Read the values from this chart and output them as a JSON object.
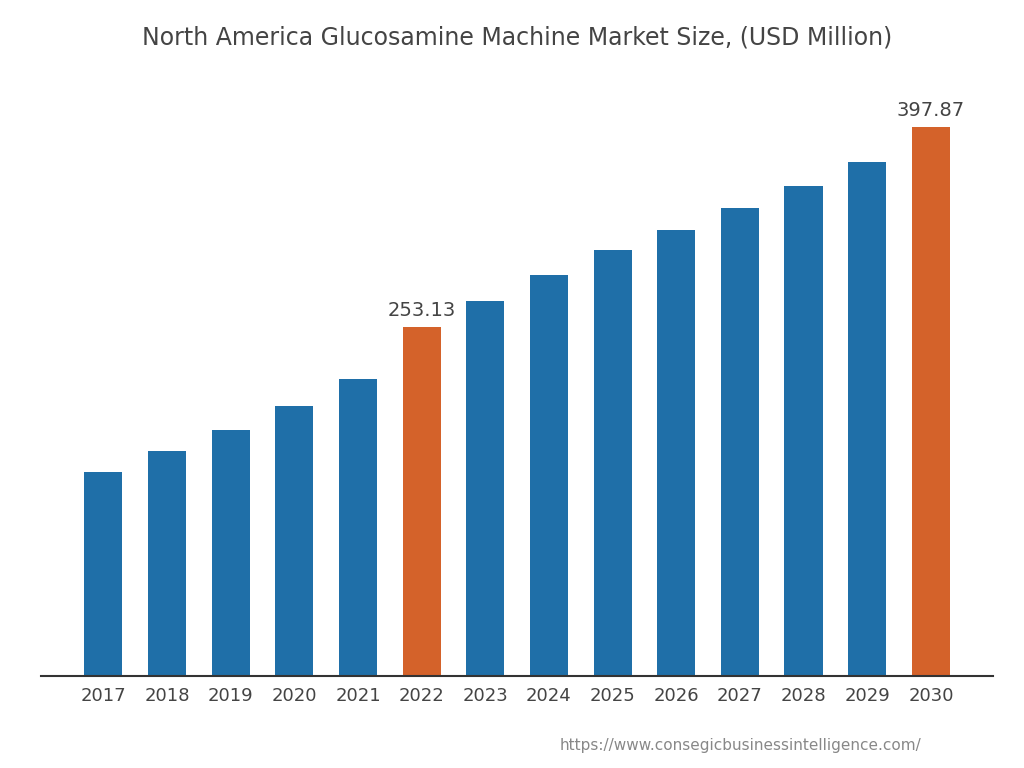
{
  "title": "North America Glucosamine Machine Market Size, (USD Million)",
  "years": [
    2017,
    2018,
    2019,
    2020,
    2021,
    2022,
    2023,
    2024,
    2025,
    2026,
    2027,
    2028,
    2029,
    2030
  ],
  "values": [
    148,
    163,
    178,
    196,
    215,
    253.13,
    272,
    291,
    309,
    323,
    339,
    355,
    373,
    397.87
  ],
  "bar_colors": [
    "#1f6fa8",
    "#1f6fa8",
    "#1f6fa8",
    "#1f6fa8",
    "#1f6fa8",
    "#d4622a",
    "#1f6fa8",
    "#1f6fa8",
    "#1f6fa8",
    "#1f6fa8",
    "#1f6fa8",
    "#1f6fa8",
    "#1f6fa8",
    "#d4622a"
  ],
  "highlight_labels": {
    "2022": "253.13",
    "2030": "397.87"
  },
  "annotation_fontsize": 14,
  "title_fontsize": 17,
  "tick_fontsize": 13,
  "url_text": "https://www.consegicbusinessintelligence.com/",
  "url_fontsize": 11,
  "background_color": "#ffffff",
  "ylim": [
    0,
    440
  ]
}
